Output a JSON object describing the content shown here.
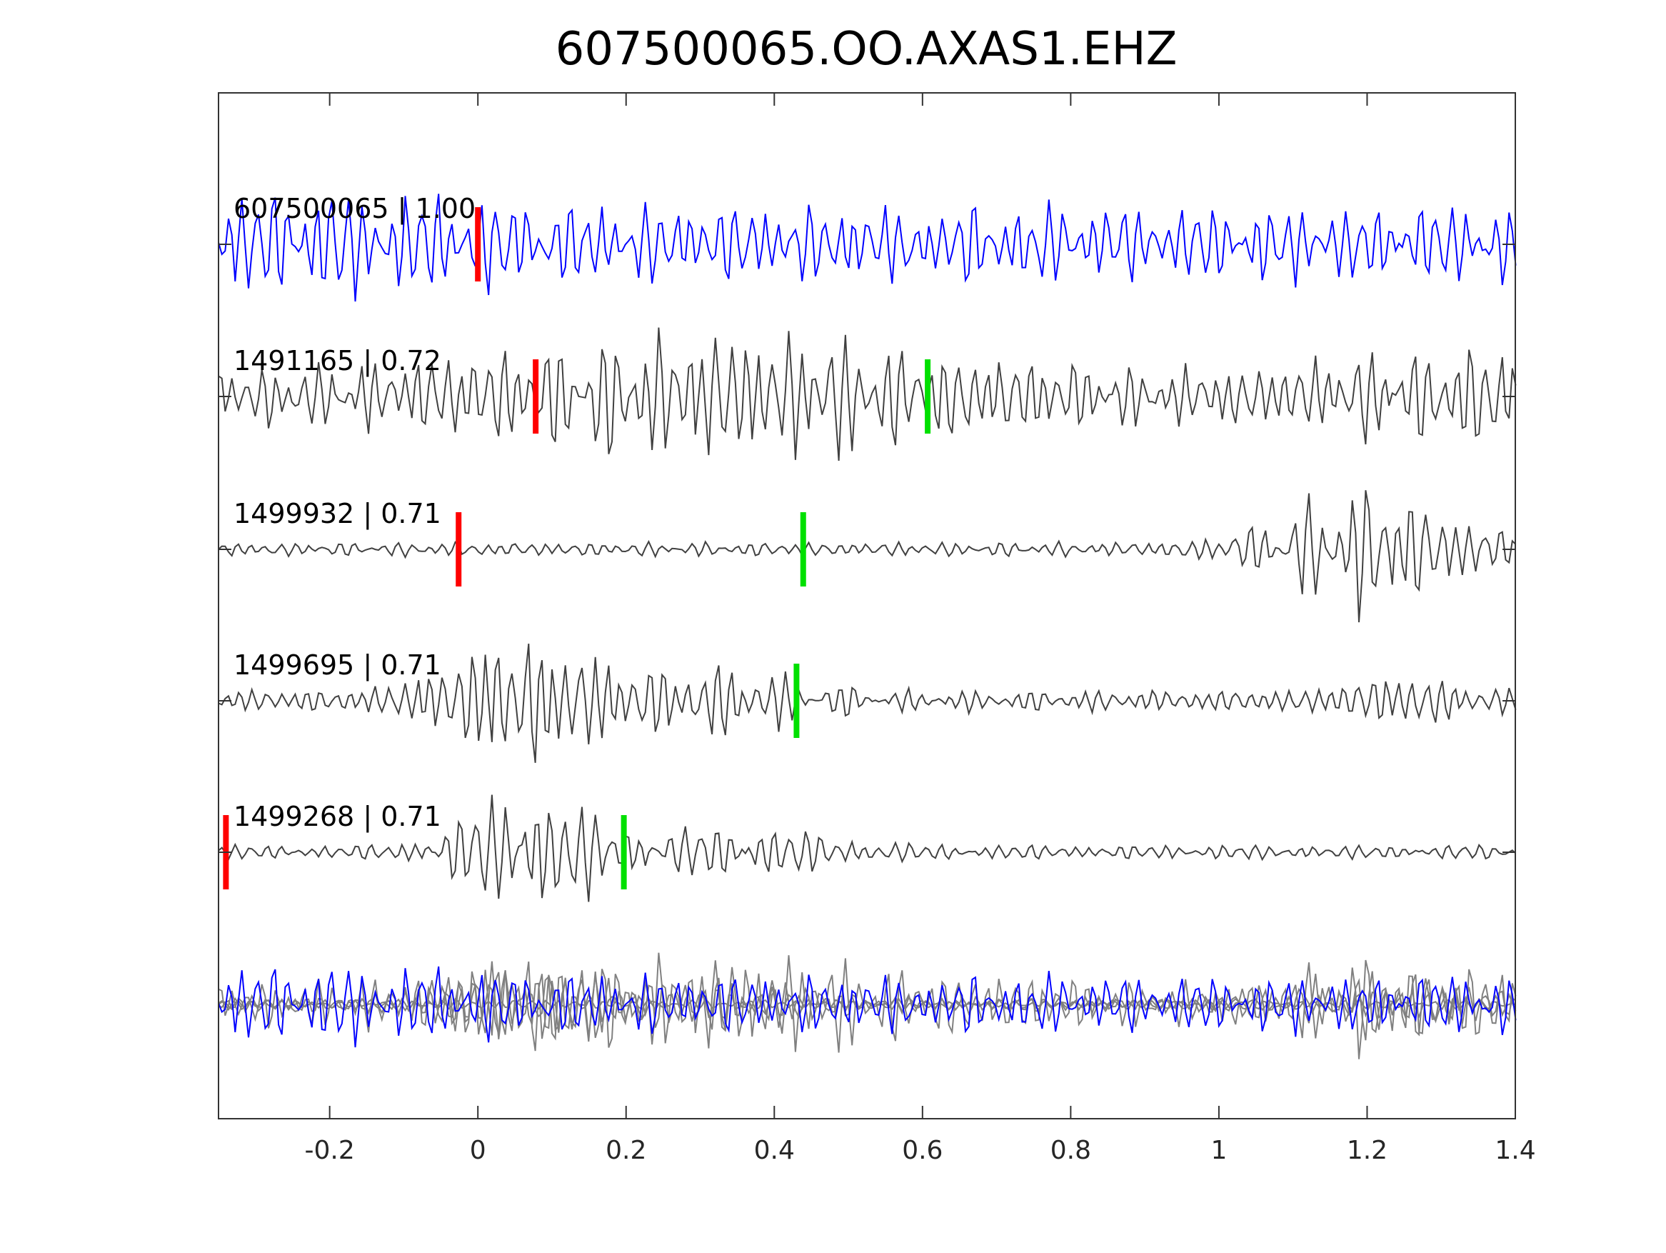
{
  "chart_data": {
    "type": "line",
    "title": "607500065.OO.AXAS1.EHZ",
    "xlabel": "",
    "ylabel": "",
    "xlim": [
      -0.35,
      1.4
    ],
    "xticks": [
      "-0.2",
      "0",
      "0.2",
      "0.4",
      "0.6",
      "0.8",
      "1",
      "1.2",
      "1.4"
    ],
    "xtick_values": [
      -0.2,
      0,
      0.2,
      0.4,
      0.6,
      0.8,
      1.0,
      1.2,
      1.4
    ],
    "grid": false,
    "colors": {
      "reference": "#0000ff",
      "neighbor": "#404040",
      "stack": "#808080",
      "p_pick": "#ff0000",
      "s_pick": "#00e000"
    },
    "traces": [
      {
        "label": "607500065 | 1.00",
        "id": "607500065",
        "cc": 1.0,
        "color": "#0000ff",
        "p_pick": 0.0,
        "s_pick": null
      },
      {
        "label": "1491165 | 0.72",
        "id": "1491165",
        "cc": 0.72,
        "color": "#404040",
        "p_pick": 0.078,
        "s_pick": 0.607
      },
      {
        "label": "1499932 | 0.71",
        "id": "1499932",
        "cc": 0.71,
        "color": "#404040",
        "p_pick": -0.026,
        "s_pick": 0.439
      },
      {
        "label": "1499695 | 0.71",
        "id": "1499695",
        "cc": 0.71,
        "color": "#404040",
        "p_pick": null,
        "s_pick": 0.43
      },
      {
        "label": "1499268 | 0.71",
        "id": "1499268",
        "cc": 0.71,
        "color": "#404040",
        "p_pick": -0.34,
        "s_pick": 0.197
      }
    ],
    "overlay": "all traces superimposed"
  }
}
